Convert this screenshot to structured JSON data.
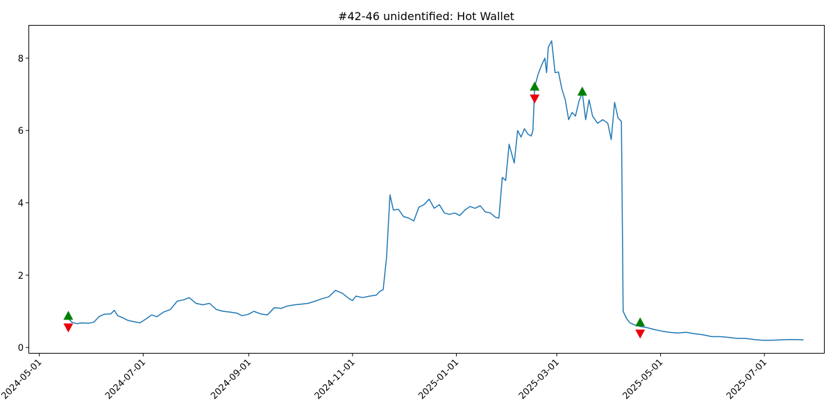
{
  "chart_data": {
    "type": "line",
    "title": "#42-46 unidentified: Hot Wallet",
    "xlabel": "",
    "ylabel": "",
    "grid": false,
    "x_axis_type": "date",
    "xlim": [
      "2024-04-25",
      "2025-08-05"
    ],
    "ylim": [
      -0.15,
      8.9
    ],
    "x_ticks": [
      "2024-05-01",
      "2024-07-01",
      "2024-09-01",
      "2024-11-01",
      "2025-01-01",
      "2025-03-01",
      "2025-05-01",
      "2025-07-01"
    ],
    "y_ticks": [
      0,
      2,
      4,
      6,
      8
    ],
    "line_color": "#1f77b4",
    "buy_marker_color": "#008000",
    "sell_marker_color": "#e8000b",
    "series": [
      {
        "points": [
          [
            "2024-05-18",
            0.8
          ],
          [
            "2024-05-20",
            0.7
          ],
          [
            "2024-05-23",
            0.66
          ],
          [
            "2024-05-26",
            0.68
          ],
          [
            "2024-05-30",
            0.67
          ],
          [
            "2024-06-02",
            0.7
          ],
          [
            "2024-06-05",
            0.85
          ],
          [
            "2024-06-08",
            0.92
          ],
          [
            "2024-06-12",
            0.93
          ],
          [
            "2024-06-14",
            1.03
          ],
          [
            "2024-06-16",
            0.88
          ],
          [
            "2024-06-19",
            0.82
          ],
          [
            "2024-06-22",
            0.75
          ],
          [
            "2024-06-26",
            0.71
          ],
          [
            "2024-06-29",
            0.68
          ],
          [
            "2024-07-03",
            0.8
          ],
          [
            "2024-07-06",
            0.9
          ],
          [
            "2024-07-09",
            0.85
          ],
          [
            "2024-07-13",
            0.98
          ],
          [
            "2024-07-17",
            1.05
          ],
          [
            "2024-07-21",
            1.28
          ],
          [
            "2024-07-25",
            1.32
          ],
          [
            "2024-07-28",
            1.38
          ],
          [
            "2024-08-01",
            1.22
          ],
          [
            "2024-08-05",
            1.18
          ],
          [
            "2024-08-09",
            1.22
          ],
          [
            "2024-08-13",
            1.05
          ],
          [
            "2024-08-17",
            1.0
          ],
          [
            "2024-08-21",
            0.98
          ],
          [
            "2024-08-25",
            0.95
          ],
          [
            "2024-08-28",
            0.88
          ],
          [
            "2024-09-01",
            0.92
          ],
          [
            "2024-09-04",
            1.0
          ],
          [
            "2024-09-08",
            0.93
          ],
          [
            "2024-09-12",
            0.9
          ],
          [
            "2024-09-16",
            1.1
          ],
          [
            "2024-09-20",
            1.08
          ],
          [
            "2024-09-24",
            1.15
          ],
          [
            "2024-09-28",
            1.18
          ],
          [
            "2024-10-02",
            1.2
          ],
          [
            "2024-10-06",
            1.22
          ],
          [
            "2024-10-10",
            1.28
          ],
          [
            "2024-10-14",
            1.35
          ],
          [
            "2024-10-18",
            1.4
          ],
          [
            "2024-10-22",
            1.58
          ],
          [
            "2024-10-26",
            1.5
          ],
          [
            "2024-10-30",
            1.35
          ],
          [
            "2024-11-01",
            1.3
          ],
          [
            "2024-11-03",
            1.42
          ],
          [
            "2024-11-07",
            1.38
          ],
          [
            "2024-11-11",
            1.42
          ],
          [
            "2024-11-15",
            1.45
          ],
          [
            "2024-11-17",
            1.55
          ],
          [
            "2024-11-19",
            1.6
          ],
          [
            "2024-11-21",
            2.5
          ],
          [
            "2024-11-23",
            4.22
          ],
          [
            "2024-11-25",
            3.8
          ],
          [
            "2024-11-28",
            3.82
          ],
          [
            "2024-12-01",
            3.62
          ],
          [
            "2024-12-04",
            3.58
          ],
          [
            "2024-12-07",
            3.5
          ],
          [
            "2024-12-10",
            3.88
          ],
          [
            "2024-12-13",
            3.95
          ],
          [
            "2024-12-16",
            4.1
          ],
          [
            "2024-12-19",
            3.85
          ],
          [
            "2024-12-22",
            3.95
          ],
          [
            "2024-12-25",
            3.72
          ],
          [
            "2024-12-28",
            3.68
          ],
          [
            "2024-12-31",
            3.72
          ],
          [
            "2025-01-03",
            3.65
          ],
          [
            "2025-01-06",
            3.8
          ],
          [
            "2025-01-09",
            3.9
          ],
          [
            "2025-01-12",
            3.85
          ],
          [
            "2025-01-15",
            3.92
          ],
          [
            "2025-01-18",
            3.75
          ],
          [
            "2025-01-21",
            3.72
          ],
          [
            "2025-01-24",
            3.6
          ],
          [
            "2025-01-26",
            3.58
          ],
          [
            "2025-01-28",
            4.7
          ],
          [
            "2025-01-30",
            4.62
          ],
          [
            "2025-02-01",
            5.62
          ],
          [
            "2025-02-04",
            5.1
          ],
          [
            "2025-02-06",
            6.0
          ],
          [
            "2025-02-08",
            5.82
          ],
          [
            "2025-02-10",
            6.05
          ],
          [
            "2025-02-12",
            5.9
          ],
          [
            "2025-02-14",
            5.85
          ],
          [
            "2025-02-15",
            6.0
          ],
          [
            "2025-02-16",
            7.2
          ],
          [
            "2025-02-18",
            7.55
          ],
          [
            "2025-02-20",
            7.8
          ],
          [
            "2025-02-22",
            8.0
          ],
          [
            "2025-02-23",
            7.6
          ],
          [
            "2025-02-24",
            8.3
          ],
          [
            "2025-02-26",
            8.48
          ],
          [
            "2025-02-28",
            7.6
          ],
          [
            "2025-03-02",
            7.62
          ],
          [
            "2025-03-04",
            7.15
          ],
          [
            "2025-03-06",
            6.85
          ],
          [
            "2025-03-08",
            6.3
          ],
          [
            "2025-03-10",
            6.5
          ],
          [
            "2025-03-12",
            6.4
          ],
          [
            "2025-03-14",
            6.8
          ],
          [
            "2025-03-16",
            7.05
          ],
          [
            "2025-03-18",
            6.3
          ],
          [
            "2025-03-20",
            6.85
          ],
          [
            "2025-03-22",
            6.4
          ],
          [
            "2025-03-25",
            6.2
          ],
          [
            "2025-03-28",
            6.3
          ],
          [
            "2025-03-31",
            6.2
          ],
          [
            "2025-04-02",
            5.75
          ],
          [
            "2025-04-04",
            6.78
          ],
          [
            "2025-04-06",
            6.35
          ],
          [
            "2025-04-08",
            6.25
          ],
          [
            "2025-04-09",
            1.0
          ],
          [
            "2025-04-11",
            0.8
          ],
          [
            "2025-04-13",
            0.68
          ],
          [
            "2025-04-16",
            0.62
          ],
          [
            "2025-04-19",
            0.58
          ],
          [
            "2025-04-23",
            0.55
          ],
          [
            "2025-04-27",
            0.5
          ],
          [
            "2025-05-02",
            0.45
          ],
          [
            "2025-05-06",
            0.42
          ],
          [
            "2025-05-11",
            0.4
          ],
          [
            "2025-05-16",
            0.42
          ],
          [
            "2025-05-21",
            0.38
          ],
          [
            "2025-05-26",
            0.35
          ],
          [
            "2025-05-31",
            0.3
          ],
          [
            "2025-06-05",
            0.3
          ],
          [
            "2025-06-10",
            0.28
          ],
          [
            "2025-06-15",
            0.25
          ],
          [
            "2025-06-20",
            0.25
          ],
          [
            "2025-06-25",
            0.22
          ],
          [
            "2025-06-30",
            0.2
          ],
          [
            "2025-07-05",
            0.2
          ],
          [
            "2025-07-10",
            0.21
          ],
          [
            "2025-07-15",
            0.22
          ],
          [
            "2025-07-20",
            0.22
          ],
          [
            "2025-07-24",
            0.21
          ]
        ]
      }
    ],
    "markers": [
      {
        "kind": "buy",
        "date": "2024-05-18",
        "y": 0.88
      },
      {
        "kind": "sell",
        "date": "2024-05-18",
        "y": 0.55
      },
      {
        "kind": "buy",
        "date": "2025-02-16",
        "y": 7.22
      },
      {
        "kind": "sell",
        "date": "2025-02-16",
        "y": 6.88
      },
      {
        "kind": "buy",
        "date": "2025-03-16",
        "y": 7.08
      },
      {
        "kind": "buy",
        "date": "2025-04-19",
        "y": 0.7
      },
      {
        "kind": "sell",
        "date": "2025-04-19",
        "y": 0.38
      }
    ]
  }
}
